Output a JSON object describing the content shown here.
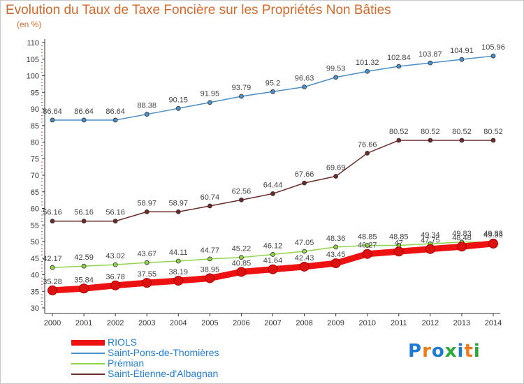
{
  "chart_data": {
    "type": "line",
    "title": "Evolution du Taux de Taxe Foncière sur les Propriétés Non Bâties",
    "ylabel": "(en %)",
    "xlabel": "",
    "ylim": [
      30,
      110
    ],
    "yticks": [
      30,
      35,
      40,
      45,
      50,
      55,
      60,
      65,
      70,
      75,
      80,
      85,
      90,
      95,
      100,
      105,
      110
    ],
    "categories": [
      "2000",
      "2001",
      "2002",
      "2003",
      "2004",
      "2005",
      "2006",
      "2007",
      "2008",
      "2009",
      "2010",
      "2011",
      "2012",
      "2013",
      "2014"
    ],
    "grid": false,
    "legend_position": "bottom-left",
    "series": [
      {
        "name": "Saint-Étienne-d'Albagnan",
        "color": "#6b2b2b",
        "values": [
          56.16,
          56.16,
          56.16,
          58.97,
          58.97,
          60.74,
          62.56,
          64.44,
          67.66,
          69.69,
          76.66,
          80.52,
          80.52,
          80.52,
          80.52
        ],
        "labels": [
          "56.16",
          "56.16",
          "56.16",
          "58.97",
          "58.97",
          "60.74",
          "62.56",
          "64.44",
          "67.66",
          "69.69",
          "76.66",
          "80.52",
          "80.52",
          "80.52",
          "80.52"
        ]
      },
      {
        "name": "Saint-Pons-de-Thomières",
        "color": "#4a8fc8",
        "values": [
          86.64,
          86.64,
          86.64,
          88.38,
          90.15,
          91.95,
          93.79,
          95.2,
          96.63,
          99.53,
          101.32,
          102.84,
          103.87,
          104.91,
          105.96
        ],
        "labels": [
          "86.64",
          "86.64",
          "86.64",
          "88.38",
          "90.15",
          "91.95",
          "93.79",
          "95.2",
          "96.63",
          "99.53",
          "101.32",
          "102.84",
          "103.87",
          "104.91",
          "105.96"
        ]
      },
      {
        "name": "Prémian",
        "color": "#8fd44a",
        "values": [
          42.17,
          42.59,
          43.02,
          43.67,
          44.11,
          44.77,
          45.22,
          46.12,
          47.05,
          48.36,
          48.85,
          48.85,
          49.34,
          49.83,
          49.83
        ],
        "labels": [
          "42.17",
          "42.59",
          "43.02",
          "43.67",
          "44.11",
          "44.77",
          "45.22",
          "46.12",
          "47.05",
          "48.36",
          "48.85",
          "48.85",
          "49.34",
          "49.83",
          "49.83"
        ]
      },
      {
        "name": "RIOLS",
        "color": "#ee1111",
        "values": [
          35.28,
          35.84,
          36.78,
          37.55,
          38.19,
          38.95,
          40.85,
          41.64,
          42.43,
          43.45,
          46.27,
          47.0,
          47.75,
          48.48,
          49.39
        ],
        "labels": [
          "35.28",
          "35.84",
          "36.78",
          "37.55",
          "38.19",
          "38.95",
          "40.85",
          "41.64",
          "42.43",
          "43.45",
          "46.27",
          "47",
          "47.75",
          "48.48",
          "49.39"
        ]
      }
    ]
  },
  "legend": {
    "items": [
      {
        "label": "RIOLS",
        "color": "#ee1111"
      },
      {
        "label": "Saint-Pons-de-Thomières",
        "color": "#4a8fc8"
      },
      {
        "label": "Prémian",
        "color": "#8fd44a"
      },
      {
        "label": "Saint-Étienne-d'Albagnan",
        "color": "#6b2b2b"
      }
    ]
  },
  "logo": {
    "text": "Proxiti"
  }
}
